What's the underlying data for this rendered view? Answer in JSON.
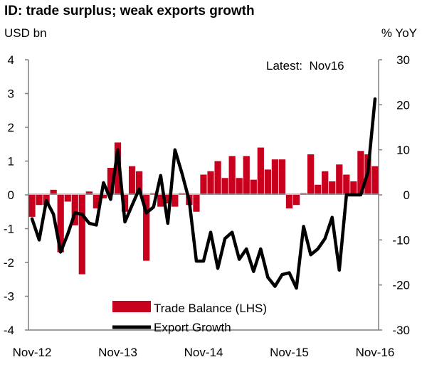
{
  "chart_data": {
    "type": "bar+line",
    "title": "ID: trade surplus; weak exports growth",
    "left_axis_title": "USD bn",
    "right_axis_title": "% YoY",
    "annotation": "Latest:  Nov16",
    "left_ylim": [
      -4,
      4
    ],
    "left_ticks": [
      "4",
      "3",
      "2",
      "1",
      "0",
      "-1",
      "-2",
      "-3",
      "-4"
    ],
    "right_ylim": [
      -30,
      30
    ],
    "right_ticks": [
      "30",
      "20",
      "10",
      "0",
      "-10",
      "-20",
      "-30"
    ],
    "x_tick_labels": [
      {
        "label": "Nov-12",
        "index": 0
      },
      {
        "label": "Nov-13",
        "index": 12
      },
      {
        "label": "Nov-14",
        "index": 24
      },
      {
        "label": "Nov-15",
        "index": 36
      },
      {
        "label": "Nov-16",
        "index": 48
      }
    ],
    "colors": {
      "trade_balance": "#c8001e",
      "export_growth": "#000000"
    },
    "series": [
      {
        "name": "Trade Balance (LHS)",
        "kind": "bar",
        "axis": "left",
        "values": [
          -0.65,
          -0.3,
          -0.3,
          0.15,
          -1.7,
          -0.2,
          -0.9,
          -2.35,
          0.1,
          -0.4,
          -0.1,
          0.8,
          1.55,
          -0.5,
          0.85,
          0.7,
          -1.95,
          0.05,
          -0.35,
          -0.25,
          -0.35,
          0.05,
          -0.3,
          -0.5,
          0.6,
          0.7,
          1.0,
          0.5,
          1.15,
          0.5,
          1.15,
          0.45,
          1.4,
          0.75,
          1.05,
          1.05,
          -0.4,
          -0.3,
          0.05,
          1.2,
          0.3,
          0.7,
          0.4,
          0.9,
          0.6,
          0.4,
          1.3,
          1.2,
          0.85
        ]
      },
      {
        "name": "Export Growth",
        "kind": "line",
        "axis": "right",
        "values": [
          -5.3,
          -10.0,
          -1.3,
          -4.3,
          -12.7,
          -8.7,
          -4.0,
          -4.3,
          -6.3,
          -6.7,
          2.7,
          -1.0,
          10.0,
          -6.0,
          -2.3,
          1.3,
          -4.0,
          -2.7,
          4.3,
          -6.3,
          10.0,
          4.7,
          -1.3,
          -14.7,
          -14.7,
          -8.3,
          -16.3,
          -9.7,
          -8.3,
          -14.3,
          -12.0,
          -17.0,
          -12.0,
          -18.3,
          -20.3,
          -17.7,
          -17.3,
          -20.7,
          -7.0,
          -13.3,
          -12.0,
          -9.7,
          -5.0,
          -16.7,
          0.0,
          0.0,
          0.0,
          5.0,
          21.3
        ]
      }
    ],
    "legend": [
      {
        "label": "Trade Balance (LHS)",
        "swatch": "bar"
      },
      {
        "label": "Export Growth",
        "swatch": "line"
      }
    ]
  }
}
